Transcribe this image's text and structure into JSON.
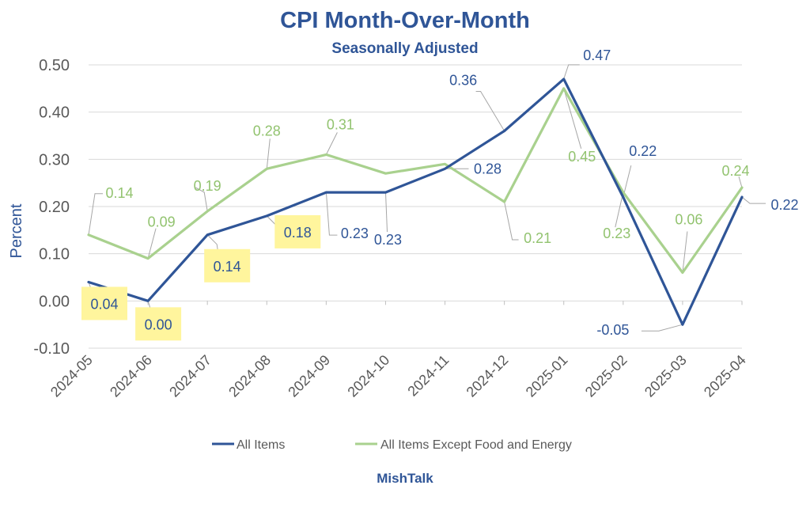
{
  "chart_data": {
    "type": "line",
    "title": "CPI Month-Over-Month",
    "subtitle": "Seasonally Adjusted",
    "ylabel": "Percent",
    "xlabel": "",
    "ylim": [
      -0.1,
      0.5
    ],
    "yticks": [
      "0.50",
      "0.40",
      "0.30",
      "0.20",
      "0.10",
      "0.00",
      "-0.10"
    ],
    "grid": true,
    "legend_position": "bottom",
    "categories": [
      "2024-05",
      "2024-06",
      "2024-07",
      "2024-08",
      "2024-09",
      "2024-10",
      "2024-11",
      "2024-12",
      "2025-01",
      "2025-02",
      "2025-03",
      "2025-04"
    ],
    "series": [
      {
        "name": "All Items",
        "color": "#2f5597",
        "values": [
          0.04,
          -0.0,
          0.14,
          0.18,
          0.23,
          0.23,
          0.28,
          0.36,
          0.47,
          0.22,
          -0.05,
          0.22
        ],
        "labels": [
          "0.04",
          "0.00",
          "0.14",
          "0.18",
          "0.23",
          "0.23",
          "0.28",
          "0.36",
          "0.47",
          "0.22",
          "-0.05",
          "0.22"
        ],
        "highlighted_labels": [
          0,
          1,
          2,
          3
        ]
      },
      {
        "name": "All Items Except Food and Energy",
        "color": "#a9d18e",
        "values": [
          0.14,
          0.09,
          0.19,
          0.28,
          0.31,
          0.27,
          0.29,
          0.21,
          0.45,
          0.23,
          0.06,
          0.24
        ],
        "labels": [
          "0.14",
          "0.09",
          "0.19",
          "0.28",
          "0.31",
          "",
          "",
          "0.21",
          "0.45",
          "0.23",
          "0.06",
          "0.24"
        ]
      }
    ],
    "label_color_green": "#92c36f",
    "highlight_color": "#fff59d"
  },
  "footer": "MishTalk"
}
